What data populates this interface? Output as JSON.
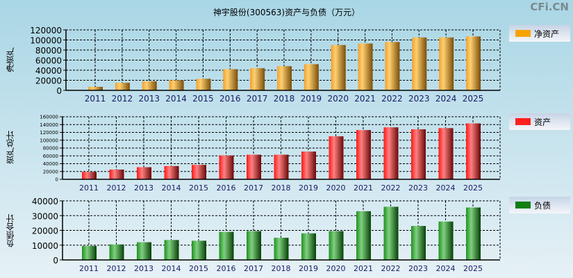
{
  "title": "神宇股份(300563)资产与负债（万元）",
  "brand": "CFi.CN",
  "colors": {
    "orange": "#f5a300",
    "red": "#ff2020",
    "green": "#108010"
  },
  "chart_data": [
    {
      "type": "bar",
      "title": "净资产",
      "ylabel": "净资产",
      "legend": "净资产",
      "ylim": [
        0,
        120000
      ],
      "yticks": [
        0,
        20000,
        40000,
        60000,
        80000,
        100000,
        120000
      ],
      "categories": [
        "2011",
        "2012",
        "2013",
        "2014",
        "2015",
        "2016",
        "2017",
        "2018",
        "2019",
        "2020",
        "2021",
        "2022",
        "2023",
        "2024",
        "2025"
      ],
      "values": [
        7000,
        15000,
        18000,
        20000,
        23000,
        42000,
        44000,
        48000,
        52000,
        90000,
        93000,
        96000,
        105000,
        105000,
        107000
      ]
    },
    {
      "type": "bar",
      "title": "资产",
      "ylabel": "资产总计",
      "legend": "资产",
      "ylim": [
        0,
        160000
      ],
      "yticks": [
        0,
        20000,
        40000,
        60000,
        80000,
        100000,
        120000,
        140000,
        160000
      ],
      "categories": [
        "2011",
        "2012",
        "2013",
        "2014",
        "2015",
        "2016",
        "2017",
        "2018",
        "2019",
        "2020",
        "2021",
        "2022",
        "2023",
        "2024",
        "2025"
      ],
      "values": [
        19000,
        25000,
        31000,
        34000,
        37000,
        61000,
        63000,
        63000,
        71000,
        110000,
        126000,
        133000,
        128000,
        131000,
        143000
      ]
    },
    {
      "type": "bar",
      "title": "负债",
      "ylabel": "负债合计",
      "legend": "负债",
      "ylim": [
        0,
        40000
      ],
      "yticks": [
        0,
        10000,
        20000,
        30000,
        40000
      ],
      "categories": [
        "2011",
        "2012",
        "2013",
        "2014",
        "2015",
        "2016",
        "2017",
        "2018",
        "2019",
        "2020",
        "2021",
        "2022",
        "2023",
        "2024",
        "2025"
      ],
      "values": [
        9500,
        10500,
        12000,
        13500,
        13000,
        19000,
        19500,
        15000,
        18000,
        19500,
        33000,
        36000,
        23000,
        26000,
        35500
      ]
    }
  ]
}
